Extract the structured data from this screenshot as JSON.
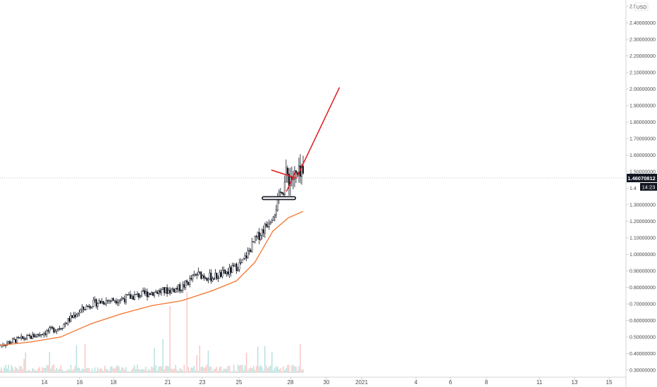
{
  "chart_data": {
    "type": "candlestick",
    "currency_label": "USD",
    "y_axis": {
      "min": 0.3,
      "max": 2.5,
      "tick_labels": [
        "2.5",
        "2.40000000",
        "2.30000000",
        "2.20000000",
        "2.10000000",
        "2.00000000",
        "1.90000000",
        "1.80000000",
        "1.70000000",
        "1.60000000",
        "1.50000000",
        "1.4",
        "1.30000000",
        "1.20000000",
        "1.10000000",
        "1.00000000",
        "0.90000000",
        "0.80000000",
        "0.70000000",
        "0.60000000",
        "0.50000000",
        "0.40000000",
        "0.30000000"
      ],
      "tick_values": [
        2.5,
        2.4,
        2.3,
        2.2,
        2.1,
        2.0,
        1.9,
        1.8,
        1.7,
        1.6,
        1.5,
        1.4,
        1.3,
        1.2,
        1.1,
        1.0,
        0.9,
        0.8,
        0.7,
        0.6,
        0.5,
        0.4,
        0.3
      ]
    },
    "x_axis": {
      "ticks": [
        "14",
        "16",
        "18",
        "21",
        "23",
        "25",
        "28",
        "30",
        "2021",
        "4",
        "6",
        "8",
        "11",
        "13",
        "15"
      ]
    },
    "last_price": {
      "value": 1.46070812,
      "label": "1.46070812",
      "countdown": "14:23"
    },
    "price_trend": [
      {
        "x": 0.0,
        "y": 0.45
      },
      {
        "x": 0.05,
        "y": 0.48
      },
      {
        "x": 0.1,
        "y": 0.5
      },
      {
        "x": 0.15,
        "y": 0.53
      },
      {
        "x": 0.2,
        "y": 0.56
      },
      {
        "x": 0.25,
        "y": 0.64
      },
      {
        "x": 0.3,
        "y": 0.7
      },
      {
        "x": 0.35,
        "y": 0.72
      },
      {
        "x": 0.4,
        "y": 0.73
      },
      {
        "x": 0.45,
        "y": 0.75
      },
      {
        "x": 0.5,
        "y": 0.77
      },
      {
        "x": 0.55,
        "y": 0.78
      },
      {
        "x": 0.6,
        "y": 0.8
      },
      {
        "x": 0.65,
        "y": 0.88
      },
      {
        "x": 0.7,
        "y": 0.86
      },
      {
        "x": 0.75,
        "y": 0.89
      },
      {
        "x": 0.8,
        "y": 0.95
      },
      {
        "x": 0.84,
        "y": 1.08
      },
      {
        "x": 0.88,
        "y": 1.18
      },
      {
        "x": 0.91,
        "y": 1.28
      },
      {
        "x": 0.93,
        "y": 1.4
      },
      {
        "x": 0.95,
        "y": 1.48
      },
      {
        "x": 0.97,
        "y": 1.46
      },
      {
        "x": 1.0,
        "y": 1.46
      }
    ],
    "moving_average": {
      "color": "#f57c3a",
      "points": [
        {
          "x": 0.0,
          "y": 0.45
        },
        {
          "x": 0.1,
          "y": 0.47
        },
        {
          "x": 0.2,
          "y": 0.5
        },
        {
          "x": 0.3,
          "y": 0.58
        },
        {
          "x": 0.4,
          "y": 0.64
        },
        {
          "x": 0.5,
          "y": 0.69
        },
        {
          "x": 0.6,
          "y": 0.72
        },
        {
          "x": 0.7,
          "y": 0.78
        },
        {
          "x": 0.78,
          "y": 0.84
        },
        {
          "x": 0.84,
          "y": 0.95
        },
        {
          "x": 0.9,
          "y": 1.14
        },
        {
          "x": 0.95,
          "y": 1.22
        },
        {
          "x": 1.0,
          "y": 1.26
        }
      ]
    },
    "annotations": {
      "color": "#e0191d",
      "pennant_upper": [
        {
          "t": 0.895,
          "y": 1.51
        },
        {
          "t": 0.98,
          "y": 1.46
        }
      ],
      "pennant_lower": [
        {
          "t": 0.945,
          "y": 1.38
        },
        {
          "t": 0.975,
          "y": 1.5
        }
      ],
      "projection": [
        {
          "t": 0.98,
          "y": 1.47
        },
        {
          "t": 1.12,
          "y": 2.01
        }
      ],
      "support": [
        {
          "t": 0.865,
          "y": 1.34
        },
        {
          "t": 0.975,
          "y": 1.34
        }
      ]
    },
    "colors": {
      "candle": "#131722",
      "up_volume": "#26a69a",
      "down_volume": "#ef5350"
    },
    "grid": false,
    "legend": "none"
  }
}
